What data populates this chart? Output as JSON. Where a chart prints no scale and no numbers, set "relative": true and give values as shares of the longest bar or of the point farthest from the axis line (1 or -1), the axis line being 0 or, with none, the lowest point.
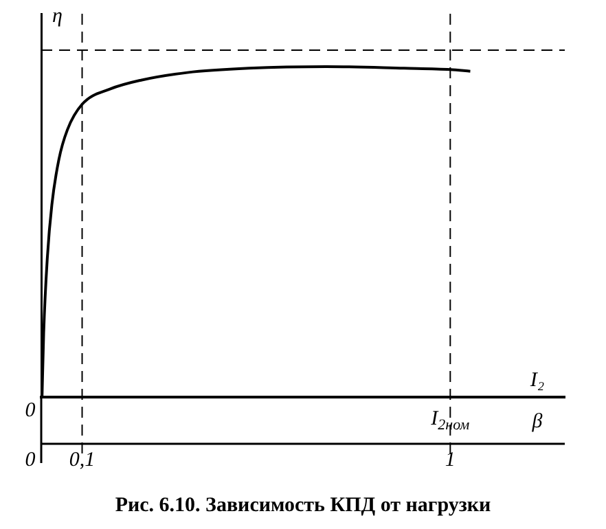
{
  "chart_data": {
    "type": "line",
    "title": "Рис. 6.10. Зависимость КПД от нагрузки",
    "ylabel": "η",
    "xlabel": "β",
    "x2label": "I₂",
    "relative": true,
    "x": [
      0.002,
      0.006,
      0.015,
      0.026,
      0.043,
      0.064,
      0.1,
      0.168,
      0.244,
      0.357,
      0.508,
      0.697,
      0.887,
      1.0,
      1.049
    ],
    "series": [
      {
        "color": "#000000",
        "values": [
          0,
          0.195,
          0.423,
          0.582,
          0.718,
          0.809,
          0.886,
          0.932,
          0.959,
          0.982,
          0.995,
          1.0,
          0.995,
          0.991,
          0.986
        ]
      }
    ],
    "xlim": [
      0,
      1.28
    ],
    "xticks": [
      0,
      {
        "value": 0.1,
        "label": "0,1"
      },
      1
    ],
    "annotations": [
      {
        "text": "0",
        "x": 0,
        "y": 0
      },
      {
        "text": "I$_{2ном}$",
        "x": 1,
        "y": 0
      }
    ],
    "ref_lines": [
      {
        "axis": "x",
        "value": 0.1,
        "line_style": "dashed"
      },
      {
        "axis": "x",
        "value": 1,
        "line_style": "dashed"
      },
      {
        "axis": "y",
        "value": 1.05,
        "line_style": "dashed"
      }
    ],
    "grid": false,
    "legend": false,
    "marker": "none",
    "line_style": "solid"
  }
}
